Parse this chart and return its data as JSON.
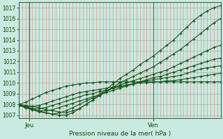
{
  "title": "Pression niveau de la mer( hPa )",
  "ylabel_ticks": [
    1007,
    1008,
    1009,
    1010,
    1011,
    1012,
    1013,
    1014,
    1015,
    1016,
    1017
  ],
  "ylim": [
    1006.7,
    1017.5
  ],
  "xlim": [
    0,
    48
  ],
  "x_jeu": 2.5,
  "x_ven": 32,
  "bg_color": "#c8eae0",
  "plot_bg": "#c8eae0",
  "grid_h_color": "#90c8a8",
  "grid_v_color": "#e89090",
  "line_color": "#1a5520",
  "ven_line_x": 32,
  "n_vgrid": 60,
  "series": [
    [
      1008.0,
      1007.9,
      1007.8,
      1007.7,
      1007.5,
      1007.4,
      1007.3,
      1007.2,
      1007.4,
      1007.6,
      1008.0,
      1008.4,
      1008.9,
      1009.4,
      1009.9,
      1010.4,
      1010.8,
      1011.2,
      1011.7,
      1012.1,
      1012.5,
      1013.0,
      1013.5,
      1014.0,
      1014.6,
      1015.2,
      1015.8,
      1016.3,
      1016.7,
      1017.0,
      1017.2
    ],
    [
      1008.0,
      1007.8,
      1007.6,
      1007.4,
      1007.2,
      1007.1,
      1007.0,
      1007.0,
      1007.2,
      1007.6,
      1008.0,
      1008.4,
      1008.8,
      1009.2,
      1009.6,
      1010.0,
      1010.3,
      1010.6,
      1010.9,
      1011.2,
      1011.5,
      1011.9,
      1012.3,
      1012.7,
      1013.1,
      1013.6,
      1014.1,
      1014.6,
      1015.1,
      1015.6,
      1016.0
    ],
    [
      1008.0,
      1007.7,
      1007.5,
      1007.3,
      1007.2,
      1007.1,
      1007.2,
      1007.4,
      1007.7,
      1008.0,
      1008.3,
      1008.6,
      1008.9,
      1009.2,
      1009.5,
      1009.8,
      1010.0,
      1010.2,
      1010.4,
      1010.6,
      1010.8,
      1011.0,
      1011.2,
      1011.5,
      1011.8,
      1012.1,
      1012.4,
      1012.7,
      1013.0,
      1013.3,
      1013.5
    ],
    [
      1007.9,
      1007.7,
      1007.5,
      1007.4,
      1007.4,
      1007.5,
      1007.7,
      1007.9,
      1008.1,
      1008.3,
      1008.5,
      1008.7,
      1008.9,
      1009.1,
      1009.3,
      1009.5,
      1009.7,
      1009.9,
      1010.1,
      1010.3,
      1010.5,
      1010.6,
      1010.8,
      1011.0,
      1011.2,
      1011.4,
      1011.6,
      1011.8,
      1012.0,
      1012.2,
      1012.3
    ],
    [
      1007.9,
      1007.7,
      1007.6,
      1007.6,
      1007.7,
      1007.9,
      1008.1,
      1008.3,
      1008.5,
      1008.7,
      1008.9,
      1009.0,
      1009.2,
      1009.3,
      1009.5,
      1009.6,
      1009.8,
      1009.9,
      1010.1,
      1010.2,
      1010.3,
      1010.4,
      1010.5,
      1010.6,
      1010.7,
      1010.9,
      1011.1,
      1011.3,
      1011.4,
      1011.5,
      1011.6
    ],
    [
      1007.9,
      1007.8,
      1007.8,
      1007.9,
      1008.1,
      1008.3,
      1008.5,
      1008.7,
      1008.9,
      1009.1,
      1009.2,
      1009.3,
      1009.4,
      1009.5,
      1009.6,
      1009.7,
      1009.8,
      1009.9,
      1010.0,
      1010.0,
      1010.1,
      1010.1,
      1010.2,
      1010.2,
      1010.3,
      1010.4,
      1010.5,
      1010.6,
      1010.7,
      1010.8,
      1010.9
    ],
    [
      1008.0,
      1008.2,
      1008.5,
      1008.8,
      1009.1,
      1009.3,
      1009.5,
      1009.7,
      1009.8,
      1009.9,
      1010.0,
      1010.0,
      1010.1,
      1010.1,
      1010.1,
      1010.1,
      1010.1,
      1010.1,
      1010.1,
      1010.1,
      1010.1,
      1010.1,
      1010.1,
      1010.1,
      1010.1,
      1010.1,
      1010.1,
      1010.1,
      1010.1,
      1010.1,
      1010.1
    ]
  ]
}
